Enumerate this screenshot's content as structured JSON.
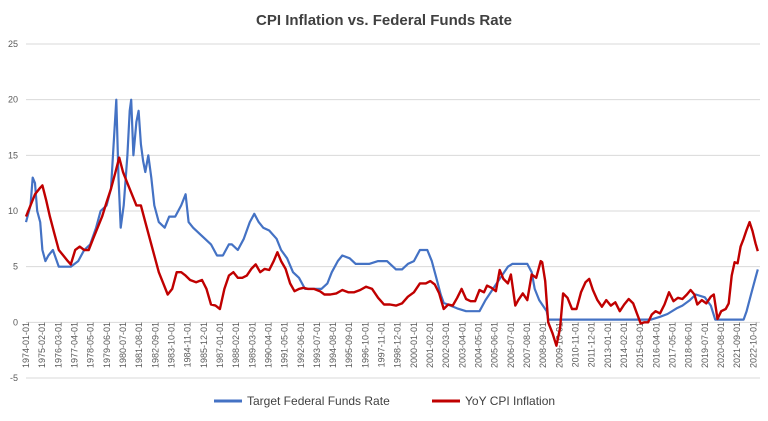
{
  "chart_data": {
    "type": "line",
    "title": "CPI Inflation vs. Federal Funds Rate",
    "xlabel": "",
    "ylabel": "",
    "ylim": [
      -5,
      25
    ],
    "yticks": [
      -5,
      0,
      5,
      10,
      15,
      20,
      25
    ],
    "xlim": [
      1974.0,
      2023.2
    ],
    "grid": true,
    "legend_position": "bottom",
    "x_tick_labels": [
      "1974-01-01",
      "1975-02-01",
      "1976-03-01",
      "1977-04-01",
      "1978-05-01",
      "1979-06-01",
      "1980-07-01",
      "1981-08-01",
      "1982-09-01",
      "1983-10-01",
      "1984-11-01",
      "1985-12-01",
      "1987-01-01",
      "1988-02-01",
      "1989-03-01",
      "1990-04-01",
      "1991-05-01",
      "1992-06-01",
      "1993-07-01",
      "1994-08-01",
      "1995-09-01",
      "1996-10-01",
      "1997-11-01",
      "1998-12-01",
      "2000-01-01",
      "2001-02-01",
      "2002-03-01",
      "2003-04-01",
      "2004-05-01",
      "2005-06-01",
      "2006-07-01",
      "2007-08-01",
      "2008-09-01",
      "2009-10-01",
      "2010-11-01",
      "2011-12-01",
      "2013-01-01",
      "2014-02-01",
      "2015-03-01",
      "2016-04-01",
      "2017-05-01",
      "2018-06-01",
      "2019-07-01",
      "2020-08-01",
      "2021-09-01",
      "2022-10-01"
    ],
    "series": [
      {
        "name": "Target Federal Funds Rate",
        "color": "#4472c4",
        "points": [
          [
            1974.0,
            9.0
          ],
          [
            1974.3,
            10.5
          ],
          [
            1974.45,
            13.0
          ],
          [
            1974.6,
            12.5
          ],
          [
            1974.75,
            10.0
          ],
          [
            1974.95,
            9.0
          ],
          [
            1975.1,
            6.5
          ],
          [
            1975.3,
            5.5
          ],
          [
            1975.5,
            6.0
          ],
          [
            1975.8,
            6.5
          ],
          [
            1976.2,
            5.0
          ],
          [
            1976.6,
            5.0
          ],
          [
            1977.0,
            5.0
          ],
          [
            1977.5,
            5.5
          ],
          [
            1977.9,
            6.5
          ],
          [
            1978.3,
            7.0
          ],
          [
            1978.7,
            8.5
          ],
          [
            1979.0,
            10.0
          ],
          [
            1979.4,
            10.5
          ],
          [
            1979.7,
            12.0
          ],
          [
            1979.85,
            15.5
          ],
          [
            1980.05,
            20.0
          ],
          [
            1980.2,
            13.0
          ],
          [
            1980.35,
            8.5
          ],
          [
            1980.55,
            10.5
          ],
          [
            1980.8,
            15.0
          ],
          [
            1980.95,
            19.0
          ],
          [
            1981.05,
            20.0
          ],
          [
            1981.2,
            15.0
          ],
          [
            1981.4,
            18.0
          ],
          [
            1981.55,
            19.0
          ],
          [
            1981.7,
            16.0
          ],
          [
            1981.85,
            14.5
          ],
          [
            1982.0,
            13.5
          ],
          [
            1982.2,
            15.0
          ],
          [
            1982.4,
            13.0
          ],
          [
            1982.6,
            10.5
          ],
          [
            1982.9,
            9.0
          ],
          [
            1983.3,
            8.5
          ],
          [
            1983.6,
            9.5
          ],
          [
            1984.0,
            9.5
          ],
          [
            1984.4,
            10.5
          ],
          [
            1984.7,
            11.5
          ],
          [
            1984.9,
            9.0
          ],
          [
            1985.2,
            8.5
          ],
          [
            1985.6,
            8.0
          ],
          [
            1986.0,
            7.5
          ],
          [
            1986.4,
            7.0
          ],
          [
            1986.8,
            6.0
          ],
          [
            1987.2,
            6.0
          ],
          [
            1987.6,
            7.0
          ],
          [
            1987.8,
            7.0
          ],
          [
            1988.2,
            6.5
          ],
          [
            1988.6,
            7.5
          ],
          [
            1989.0,
            9.0
          ],
          [
            1989.3,
            9.75
          ],
          [
            1989.6,
            9.0
          ],
          [
            1989.9,
            8.5
          ],
          [
            1990.3,
            8.25
          ],
          [
            1990.8,
            7.5
          ],
          [
            1991.1,
            6.5
          ],
          [
            1991.5,
            5.75
          ],
          [
            1991.9,
            4.5
          ],
          [
            1992.3,
            4.0
          ],
          [
            1992.7,
            3.0
          ],
          [
            1993.2,
            3.0
          ],
          [
            1993.8,
            3.0
          ],
          [
            1994.2,
            3.5
          ],
          [
            1994.5,
            4.5
          ],
          [
            1994.9,
            5.5
          ],
          [
            1995.2,
            6.0
          ],
          [
            1995.7,
            5.75
          ],
          [
            1996.1,
            5.25
          ],
          [
            1996.6,
            5.25
          ],
          [
            1997.0,
            5.25
          ],
          [
            1997.6,
            5.5
          ],
          [
            1998.2,
            5.5
          ],
          [
            1998.8,
            4.75
          ],
          [
            1999.2,
            4.75
          ],
          [
            1999.6,
            5.25
          ],
          [
            2000.0,
            5.5
          ],
          [
            2000.4,
            6.5
          ],
          [
            2000.9,
            6.5
          ],
          [
            2001.2,
            5.5
          ],
          [
            2001.5,
            4.0
          ],
          [
            2001.8,
            2.5
          ],
          [
            2002.0,
            1.75
          ],
          [
            2002.9,
            1.25
          ],
          [
            2003.5,
            1.0
          ],
          [
            2004.4,
            1.0
          ],
          [
            2004.8,
            2.0
          ],
          [
            2005.3,
            3.0
          ],
          [
            2005.8,
            4.0
          ],
          [
            2006.3,
            5.0
          ],
          [
            2006.6,
            5.25
          ],
          [
            2007.6,
            5.25
          ],
          [
            2007.9,
            4.5
          ],
          [
            2008.1,
            3.0
          ],
          [
            2008.4,
            2.0
          ],
          [
            2008.9,
            1.0
          ],
          [
            2009.0,
            0.25
          ],
          [
            2015.9,
            0.25
          ],
          [
            2016.5,
            0.5
          ],
          [
            2017.0,
            0.75
          ],
          [
            2017.6,
            1.25
          ],
          [
            2018.0,
            1.5
          ],
          [
            2018.5,
            2.0
          ],
          [
            2018.9,
            2.5
          ],
          [
            2019.5,
            2.25
          ],
          [
            2019.9,
            1.5
          ],
          [
            2020.2,
            0.25
          ],
          [
            2022.1,
            0.25
          ],
          [
            2022.3,
            1.0
          ],
          [
            2022.6,
            2.5
          ],
          [
            2022.9,
            4.0
          ],
          [
            2023.05,
            4.75
          ]
        ]
      },
      {
        "name": "YoY CPI Inflation",
        "color": "#c00000",
        "points": [
          [
            1974.0,
            9.5
          ],
          [
            1974.3,
            10.5
          ],
          [
            1974.6,
            11.5
          ],
          [
            1974.9,
            12.0
          ],
          [
            1975.1,
            12.3
          ],
          [
            1975.35,
            11.0
          ],
          [
            1975.6,
            9.5
          ],
          [
            1975.9,
            8.0
          ],
          [
            1976.2,
            6.5
          ],
          [
            1976.5,
            6.0
          ],
          [
            1976.8,
            5.5
          ],
          [
            1977.0,
            5.2
          ],
          [
            1977.3,
            6.5
          ],
          [
            1977.6,
            6.8
          ],
          [
            1977.9,
            6.5
          ],
          [
            1978.2,
            6.5
          ],
          [
            1978.5,
            7.5
          ],
          [
            1978.8,
            8.5
          ],
          [
            1979.1,
            9.5
          ],
          [
            1979.4,
            10.8
          ],
          [
            1979.7,
            12.0
          ],
          [
            1980.0,
            13.5
          ],
          [
            1980.25,
            14.8
          ],
          [
            1980.5,
            13.5
          ],
          [
            1980.8,
            12.5
          ],
          [
            1981.1,
            11.5
          ],
          [
            1981.4,
            10.5
          ],
          [
            1981.7,
            10.5
          ],
          [
            1982.0,
            9.0
          ],
          [
            1982.3,
            7.5
          ],
          [
            1982.6,
            6.0
          ],
          [
            1982.9,
            4.5
          ],
          [
            1983.2,
            3.5
          ],
          [
            1983.5,
            2.5
          ],
          [
            1983.8,
            3.0
          ],
          [
            1984.1,
            4.5
          ],
          [
            1984.4,
            4.5
          ],
          [
            1984.7,
            4.2
          ],
          [
            1985.0,
            3.8
          ],
          [
            1985.4,
            3.6
          ],
          [
            1985.8,
            3.8
          ],
          [
            1986.1,
            3.0
          ],
          [
            1986.4,
            1.6
          ],
          [
            1986.7,
            1.5
          ],
          [
            1987.0,
            1.2
          ],
          [
            1987.3,
            3.0
          ],
          [
            1987.6,
            4.2
          ],
          [
            1987.9,
            4.5
          ],
          [
            1988.2,
            4.0
          ],
          [
            1988.5,
            4.0
          ],
          [
            1988.8,
            4.2
          ],
          [
            1989.1,
            4.8
          ],
          [
            1989.4,
            5.2
          ],
          [
            1989.7,
            4.5
          ],
          [
            1990.0,
            4.8
          ],
          [
            1990.3,
            4.7
          ],
          [
            1990.6,
            5.5
          ],
          [
            1990.85,
            6.3
          ],
          [
            1991.1,
            5.5
          ],
          [
            1991.4,
            4.8
          ],
          [
            1991.7,
            3.5
          ],
          [
            1992.0,
            2.8
          ],
          [
            1992.3,
            3.0
          ],
          [
            1992.6,
            3.1
          ],
          [
            1992.9,
            3.0
          ],
          [
            1993.3,
            3.0
          ],
          [
            1993.7,
            2.8
          ],
          [
            1994.0,
            2.5
          ],
          [
            1994.4,
            2.5
          ],
          [
            1994.8,
            2.6
          ],
          [
            1995.2,
            2.9
          ],
          [
            1995.6,
            2.7
          ],
          [
            1996.0,
            2.7
          ],
          [
            1996.4,
            2.9
          ],
          [
            1996.8,
            3.2
          ],
          [
            1997.2,
            3.0
          ],
          [
            1997.6,
            2.2
          ],
          [
            1998.0,
            1.6
          ],
          [
            1998.4,
            1.6
          ],
          [
            1998.8,
            1.5
          ],
          [
            1999.2,
            1.7
          ],
          [
            1999.6,
            2.3
          ],
          [
            2000.0,
            2.7
          ],
          [
            2000.4,
            3.5
          ],
          [
            2000.8,
            3.5
          ],
          [
            2001.1,
            3.7
          ],
          [
            2001.4,
            3.4
          ],
          [
            2001.7,
            2.6
          ],
          [
            2002.0,
            1.2
          ],
          [
            2002.3,
            1.6
          ],
          [
            2002.6,
            1.5
          ],
          [
            2002.9,
            2.2
          ],
          [
            2003.2,
            3.0
          ],
          [
            2003.5,
            2.1
          ],
          [
            2003.8,
            1.9
          ],
          [
            2004.1,
            1.9
          ],
          [
            2004.4,
            2.9
          ],
          [
            2004.7,
            2.7
          ],
          [
            2004.9,
            3.3
          ],
          [
            2005.2,
            3.1
          ],
          [
            2005.5,
            2.8
          ],
          [
            2005.75,
            4.7
          ],
          [
            2006.0,
            3.9
          ],
          [
            2006.3,
            3.5
          ],
          [
            2006.5,
            4.3
          ],
          [
            2006.8,
            1.5
          ],
          [
            2007.0,
            2.0
          ],
          [
            2007.3,
            2.6
          ],
          [
            2007.6,
            2.0
          ],
          [
            2007.9,
            4.3
          ],
          [
            2008.2,
            4.0
          ],
          [
            2008.5,
            5.5
          ],
          [
            2008.6,
            5.4
          ],
          [
            2008.8,
            3.7
          ],
          [
            2009.0,
            0.0
          ],
          [
            2009.3,
            -1.0
          ],
          [
            2009.55,
            -2.1
          ],
          [
            2009.8,
            -0.5
          ],
          [
            2010.0,
            2.6
          ],
          [
            2010.3,
            2.2
          ],
          [
            2010.6,
            1.2
          ],
          [
            2010.9,
            1.2
          ],
          [
            2011.2,
            2.7
          ],
          [
            2011.5,
            3.6
          ],
          [
            2011.75,
            3.9
          ],
          [
            2012.0,
            2.9
          ],
          [
            2012.3,
            2.0
          ],
          [
            2012.6,
            1.4
          ],
          [
            2012.9,
            2.0
          ],
          [
            2013.2,
            1.5
          ],
          [
            2013.5,
            1.8
          ],
          [
            2013.8,
            1.0
          ],
          [
            2014.1,
            1.6
          ],
          [
            2014.4,
            2.1
          ],
          [
            2014.7,
            1.7
          ],
          [
            2014.95,
            0.8
          ],
          [
            2015.2,
            -0.1
          ],
          [
            2015.45,
            0.0
          ],
          [
            2015.7,
            0.0
          ],
          [
            2015.95,
            0.7
          ],
          [
            2016.2,
            1.0
          ],
          [
            2016.5,
            0.8
          ],
          [
            2016.8,
            1.6
          ],
          [
            2017.1,
            2.7
          ],
          [
            2017.4,
            1.9
          ],
          [
            2017.7,
            2.2
          ],
          [
            2018.0,
            2.1
          ],
          [
            2018.3,
            2.5
          ],
          [
            2018.55,
            2.9
          ],
          [
            2018.8,
            2.5
          ],
          [
            2019.0,
            1.6
          ],
          [
            2019.3,
            2.0
          ],
          [
            2019.6,
            1.7
          ],
          [
            2019.9,
            2.3
          ],
          [
            2020.1,
            2.5
          ],
          [
            2020.35,
            0.3
          ],
          [
            2020.6,
            1.0
          ],
          [
            2020.9,
            1.2
          ],
          [
            2021.1,
            1.7
          ],
          [
            2021.3,
            4.2
          ],
          [
            2021.5,
            5.4
          ],
          [
            2021.7,
            5.3
          ],
          [
            2021.9,
            6.8
          ],
          [
            2022.1,
            7.5
          ],
          [
            2022.3,
            8.3
          ],
          [
            2022.5,
            9.0
          ],
          [
            2022.7,
            8.2
          ],
          [
            2022.9,
            7.1
          ],
          [
            2023.05,
            6.4
          ]
        ]
      }
    ]
  }
}
